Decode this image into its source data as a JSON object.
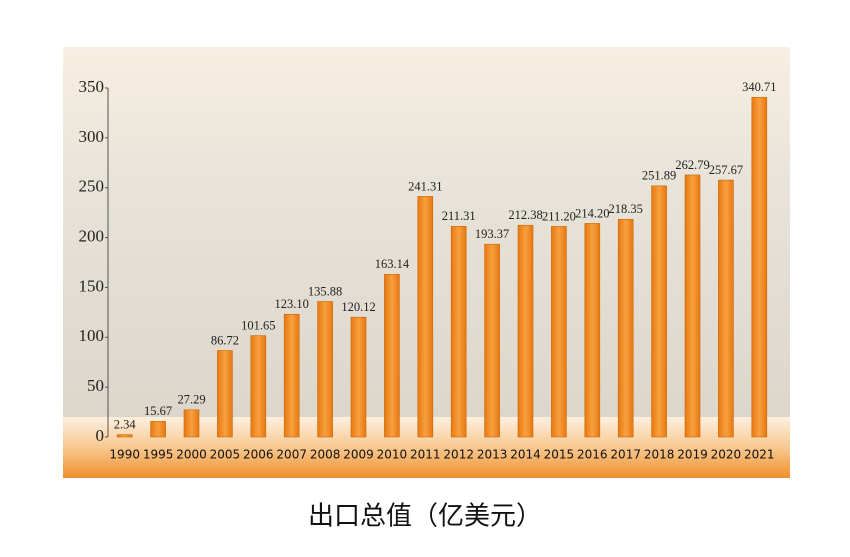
{
  "chart_data": {
    "type": "bar",
    "title": "出口总值（亿美元）",
    "categories": [
      "1990",
      "1995",
      "2000",
      "2005",
      "2006",
      "2007",
      "2008",
      "2009",
      "2010",
      "2011",
      "2012",
      "2013",
      "2014",
      "2015",
      "2016",
      "2017",
      "2018",
      "2019",
      "2020",
      "2021"
    ],
    "values": [
      2.34,
      15.67,
      27.29,
      86.72,
      101.65,
      123.1,
      135.88,
      120.12,
      163.14,
      241.31,
      211.31,
      193.37,
      212.38,
      211.2,
      214.2,
      218.35,
      251.89,
      262.79,
      257.67,
      340.71
    ],
    "value_labels": [
      "2.34",
      "15.67",
      "27.29",
      "86.72",
      "101.65",
      "123.10",
      "135.88",
      "120.12",
      "163.14",
      "241.31",
      "211.31",
      "193.37",
      "212.38",
      "211.20",
      "214.20",
      "218.35",
      "251.89",
      "262.79",
      "257.67",
      "340.71"
    ],
    "color": "#f0891c",
    "ylim": [
      0,
      350
    ],
    "yticks": [
      0,
      50,
      100,
      150,
      200,
      250,
      300,
      350
    ]
  }
}
